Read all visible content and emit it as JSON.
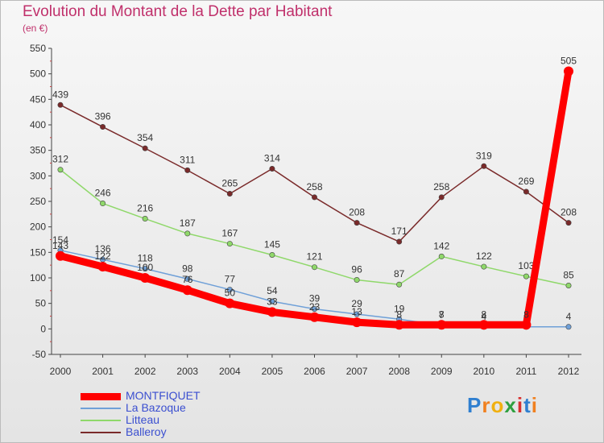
{
  "title": "Evolution du Montant de la Dette par Habitant",
  "unit_label": "(en €)",
  "logo": {
    "text": "Proxiti",
    "colors": [
      "#2f7fd0",
      "#f08020",
      "#f0b010",
      "#2fa03f",
      "#d83030",
      "#2f7fd0",
      "#f08020"
    ]
  },
  "chart_data": {
    "type": "line",
    "title": "Evolution du Montant de la Dette par Habitant",
    "subtitle": "(en €)",
    "xlabel": "",
    "ylabel": "",
    "categories": [
      "2000",
      "2001",
      "2002",
      "2003",
      "2004",
      "2005",
      "2006",
      "2007",
      "2008",
      "2009",
      "2010",
      "2011",
      "2012"
    ],
    "ylim": [
      -50,
      550
    ],
    "yticks": [
      -50,
      0,
      50,
      100,
      150,
      200,
      250,
      300,
      350,
      400,
      450,
      500,
      550
    ],
    "grid": false,
    "legend_position": "bottom-left",
    "series": [
      {
        "name": "MONTFIQUET",
        "color": "#ff0000",
        "width": 9,
        "values": [
          143,
          122,
          100,
          76,
          50,
          33,
          23,
          13,
          8,
          8,
          8,
          8,
          505
        ],
        "labels": [
          "143",
          "122",
          "100",
          "76",
          "50",
          "33",
          "23",
          "13",
          "8",
          "8",
          "8",
          "8",
          "505"
        ]
      },
      {
        "name": "La Bazoque",
        "color": "#6fa0d8",
        "width": 1.5,
        "values": [
          154,
          136,
          118,
          98,
          77,
          54,
          39,
          29,
          19,
          7,
          4,
          4,
          4
        ],
        "labels": [
          "154",
          "136",
          "118",
          "98",
          "77",
          "54",
          "39",
          "29",
          "19",
          "7",
          "4",
          "4",
          "4"
        ]
      },
      {
        "name": "Litteau",
        "color": "#8fd86a",
        "width": 1.5,
        "values": [
          312,
          246,
          216,
          187,
          167,
          145,
          121,
          96,
          87,
          142,
          122,
          103,
          85
        ],
        "labels": [
          "312",
          "246",
          "216",
          "187",
          "167",
          "145",
          "121",
          "96",
          "87",
          "142",
          "122",
          "103",
          "85"
        ]
      },
      {
        "name": "Balleroy",
        "color": "#7a2a2a",
        "width": 1.5,
        "values": [
          439,
          396,
          354,
          311,
          265,
          314,
          258,
          208,
          171,
          258,
          319,
          269,
          208
        ],
        "labels": [
          "439",
          "396",
          "354",
          "311",
          "265",
          "314",
          "258",
          "208",
          "171",
          "258",
          "319",
          "269",
          "208"
        ]
      }
    ]
  }
}
